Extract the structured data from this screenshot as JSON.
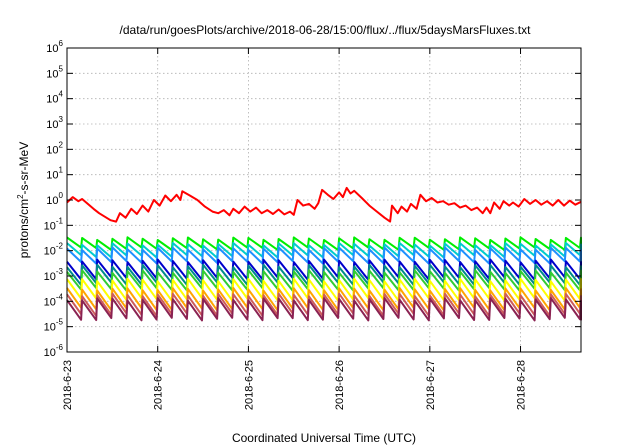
{
  "chart_data": {
    "type": "line",
    "title": "/data/run/goesPlots/archive/2018-06-28/15:00/flux/../flux/5daysMarsFluxes.txt",
    "xlabel": "Coordinated Universal Time (UTC)",
    "ylabel": {
      "pre": "protons/cm",
      "sup": "2",
      "post": "-s-sr-MeV"
    },
    "yscale": "log",
    "ylim": [
      1e-06,
      1000000.0
    ],
    "y_ticks": [
      {
        "base": "10",
        "exp": "-6",
        "value": 1e-06
      },
      {
        "base": "10",
        "exp": "-5",
        "value": 1e-05
      },
      {
        "base": "10",
        "exp": "-4",
        "value": 0.0001
      },
      {
        "base": "10",
        "exp": "-3",
        "value": 0.001
      },
      {
        "base": "10",
        "exp": "-2",
        "value": 0.01
      },
      {
        "base": "10",
        "exp": "-1",
        "value": 0.1
      },
      {
        "base": "10",
        "exp": "0",
        "value": 1
      },
      {
        "base": "10",
        "exp": "1",
        "value": 10.0
      },
      {
        "base": "10",
        "exp": "2",
        "value": 100.0
      },
      {
        "base": "10",
        "exp": "3",
        "value": 1000.0
      },
      {
        "base": "10",
        "exp": "4",
        "value": 10000.0
      },
      {
        "base": "10",
        "exp": "5",
        "value": 100000.0
      },
      {
        "base": "10",
        "exp": "6",
        "value": 1000000.0
      }
    ],
    "xlim": [
      "2018-06-23T00:00",
      "2018-06-28T16:00"
    ],
    "x_ticks": [
      "2018-6-23",
      "2018-6-24",
      "2018-6-25",
      "2018-6-26",
      "2018-6-27",
      "2018-6-28"
    ],
    "x_tick_dates": [
      "2018-06-23",
      "2018-06-24",
      "2018-06-25",
      "2018-06-26",
      "2018-06-27",
      "2018-06-28"
    ],
    "grid": true,
    "legend": "none",
    "series": [
      {
        "color": "#ff0000",
        "points": [
          [
            "2018-06-23T00:00",
            0.8
          ],
          [
            "2018-06-23T01:30",
            1.3
          ],
          [
            "2018-06-23T03:00",
            0.9
          ],
          [
            "2018-06-23T04:00",
            1.1
          ],
          [
            "2018-06-23T05:30",
            0.7
          ],
          [
            "2018-06-23T07:00",
            0.45
          ],
          [
            "2018-06-23T08:30",
            0.3
          ],
          [
            "2018-06-23T10:00",
            0.22
          ],
          [
            "2018-06-23T11:30",
            0.16
          ],
          [
            "2018-06-23T13:00",
            0.14
          ],
          [
            "2018-06-23T14:00",
            0.3
          ],
          [
            "2018-06-23T15:30",
            0.2
          ],
          [
            "2018-06-23T17:00",
            0.45
          ],
          [
            "2018-06-23T18:30",
            0.28
          ],
          [
            "2018-06-23T20:00",
            0.6
          ],
          [
            "2018-06-23T21:30",
            0.35
          ],
          [
            "2018-06-23T23:00",
            1.0
          ],
          [
            "2018-06-24T00:30",
            0.6
          ],
          [
            "2018-06-24T02:00",
            1.5
          ],
          [
            "2018-06-24T03:30",
            0.9
          ],
          [
            "2018-06-24T05:00",
            1.6
          ],
          [
            "2018-06-24T06:00",
            1.0
          ],
          [
            "2018-06-24T06:30",
            2.2
          ],
          [
            "2018-06-24T08:30",
            1.5
          ],
          [
            "2018-06-24T10:30",
            1.0
          ],
          [
            "2018-06-24T12:30",
            0.55
          ],
          [
            "2018-06-24T14:30",
            0.35
          ],
          [
            "2018-06-24T16:00",
            0.3
          ],
          [
            "2018-06-24T17:30",
            0.4
          ],
          [
            "2018-06-24T19:00",
            0.25
          ],
          [
            "2018-06-24T20:00",
            0.45
          ],
          [
            "2018-06-24T21:30",
            0.3
          ],
          [
            "2018-06-24T23:00",
            0.55
          ],
          [
            "2018-06-25T00:30",
            0.35
          ],
          [
            "2018-06-25T02:00",
            0.5
          ],
          [
            "2018-06-25T03:30",
            0.3
          ],
          [
            "2018-06-25T05:00",
            0.4
          ],
          [
            "2018-06-25T06:30",
            0.28
          ],
          [
            "2018-06-25T08:00",
            0.42
          ],
          [
            "2018-06-25T09:30",
            0.27
          ],
          [
            "2018-06-25T11:00",
            0.35
          ],
          [
            "2018-06-25T12:00",
            0.26
          ],
          [
            "2018-06-25T13:00",
            1.0
          ],
          [
            "2018-06-25T14:30",
            0.6
          ],
          [
            "2018-06-25T16:00",
            0.7
          ],
          [
            "2018-06-25T17:30",
            0.45
          ],
          [
            "2018-06-25T18:30",
            0.75
          ],
          [
            "2018-06-25T19:30",
            2.5
          ],
          [
            "2018-06-25T21:00",
            1.6
          ],
          [
            "2018-06-25T22:30",
            1.1
          ],
          [
            "2018-06-26T00:00",
            2.0
          ],
          [
            "2018-06-26T01:00",
            1.3
          ],
          [
            "2018-06-26T02:00",
            3.0
          ],
          [
            "2018-06-26T03:00",
            1.8
          ],
          [
            "2018-06-26T04:00",
            2.3
          ],
          [
            "2018-06-26T06:00",
            1.2
          ],
          [
            "2018-06-26T08:00",
            0.6
          ],
          [
            "2018-06-26T10:00",
            0.35
          ],
          [
            "2018-06-26T12:00",
            0.2
          ],
          [
            "2018-06-26T13:30",
            0.14
          ],
          [
            "2018-06-26T14:00",
            0.6
          ],
          [
            "2018-06-26T15:30",
            0.3
          ],
          [
            "2018-06-26T16:30",
            0.55
          ],
          [
            "2018-06-26T18:00",
            0.35
          ],
          [
            "2018-06-26T19:00",
            0.7
          ],
          [
            "2018-06-26T20:30",
            0.45
          ],
          [
            "2018-06-26T21:30",
            1.6
          ],
          [
            "2018-06-26T23:00",
            0.9
          ],
          [
            "2018-06-27T00:30",
            1.2
          ],
          [
            "2018-06-27T02:00",
            0.8
          ],
          [
            "2018-06-27T03:30",
            0.9
          ],
          [
            "2018-06-27T05:00",
            0.65
          ],
          [
            "2018-06-27T06:30",
            0.75
          ],
          [
            "2018-06-27T08:00",
            0.5
          ],
          [
            "2018-06-27T09:30",
            0.6
          ],
          [
            "2018-06-27T11:00",
            0.4
          ],
          [
            "2018-06-27T12:30",
            0.5
          ],
          [
            "2018-06-27T14:00",
            0.3
          ],
          [
            "2018-06-27T15:00",
            0.5
          ],
          [
            "2018-06-27T16:00",
            0.3
          ],
          [
            "2018-06-27T17:00",
            0.8
          ],
          [
            "2018-06-27T18:30",
            0.45
          ],
          [
            "2018-06-27T19:30",
            0.9
          ],
          [
            "2018-06-27T21:00",
            0.6
          ],
          [
            "2018-06-27T22:00",
            0.8
          ],
          [
            "2018-06-27T23:30",
            0.55
          ],
          [
            "2018-06-28T01:00",
            1.1
          ],
          [
            "2018-06-28T02:30",
            0.7
          ],
          [
            "2018-06-28T04:00",
            1.0
          ],
          [
            "2018-06-28T05:30",
            0.65
          ],
          [
            "2018-06-28T07:00",
            0.9
          ],
          [
            "2018-06-28T08:30",
            0.6
          ],
          [
            "2018-06-28T10:00",
            1.0
          ],
          [
            "2018-06-28T11:30",
            0.6
          ],
          [
            "2018-06-28T13:00",
            0.95
          ],
          [
            "2018-06-28T14:30",
            0.65
          ],
          [
            "2018-06-28T16:00",
            0.85
          ]
        ]
      },
      {
        "color": "#00ee00",
        "sawtooth": {
          "peak": 0.03,
          "trough": 0.012,
          "period_hours": 4
        }
      },
      {
        "color": "#00cccc",
        "sawtooth": {
          "peak": 0.018,
          "trough": 0.006,
          "period_hours": 4
        }
      },
      {
        "color": "#1e90ff",
        "sawtooth": {
          "peak": 0.012,
          "trough": 0.0035,
          "period_hours": 4
        }
      },
      {
        "color": "#0000cc",
        "sawtooth": {
          "peak": 0.004,
          "trough": 0.0008,
          "period_hours": 4
        }
      },
      {
        "color": "#008b8b",
        "sawtooth": {
          "peak": 0.0025,
          "trough": 0.0005,
          "period_hours": 4
        }
      },
      {
        "color": "#32cd32",
        "sawtooth": {
          "peak": 0.0015,
          "trough": 0.0003,
          "period_hours": 4
        }
      },
      {
        "color": "#ffff00",
        "sawtooth": {
          "peak": 0.0007,
          "trough": 0.00012,
          "period_hours": 4
        }
      },
      {
        "color": "#ffa500",
        "sawtooth": {
          "peak": 0.0003,
          "trough": 5e-05,
          "period_hours": 4
        }
      },
      {
        "color": "#cd5c5c",
        "sawtooth": {
          "peak": 0.00018,
          "trough": 3e-05,
          "period_hours": 4
        }
      },
      {
        "color": "#8b2252",
        "sawtooth": {
          "peak": 0.00012,
          "trough": 2e-05,
          "period_hours": 4
        }
      }
    ]
  }
}
